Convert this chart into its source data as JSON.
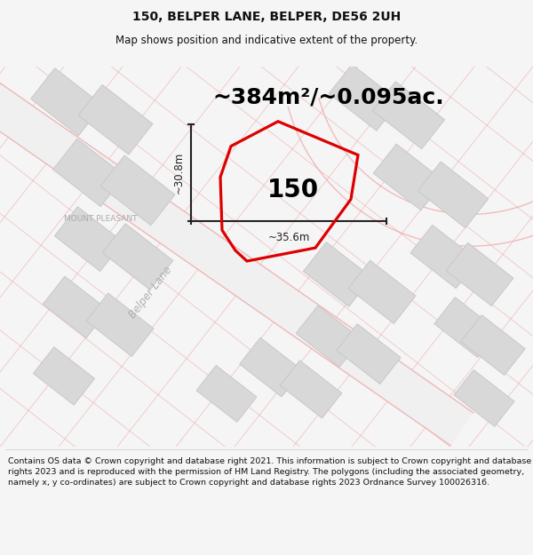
{
  "title": "150, BELPER LANE, BELPER, DE56 2UH",
  "subtitle": "Map shows position and indicative extent of the property.",
  "area_text": "~384m²/~0.095ac.",
  "label_150": "150",
  "dim_vertical": "~30.8m",
  "dim_horizontal": "~35.6m",
  "street_label": "Belper Lane",
  "mount_pleasant_label": "MOUNT PLEASANT",
  "footer": "Contains OS data © Crown copyright and database right 2021. This information is subject to Crown copyright and database rights 2023 and is reproduced with the permission of HM Land Registry. The polygons (including the associated geometry, namely x, y co-ordinates) are subject to Crown copyright and database rights 2023 Ordnance Survey 100026316.",
  "bg_color": "#f5f5f5",
  "map_bg": "#ffffff",
  "road_line_color": "#f0a8a8",
  "building_color": "#d8d8d8",
  "building_edge": "#c8c8c8",
  "property_edge_color": "#dd0000",
  "dim_color": "#222222",
  "street_color": "#b0b0b0",
  "mount_color": "#aaaaaa",
  "title_fontsize": 10,
  "subtitle_fontsize": 8.5,
  "area_fontsize": 18,
  "label_fontsize": 20,
  "dim_fontsize": 8.5,
  "footer_fontsize": 6.8,
  "street_fontsize": 8.5
}
